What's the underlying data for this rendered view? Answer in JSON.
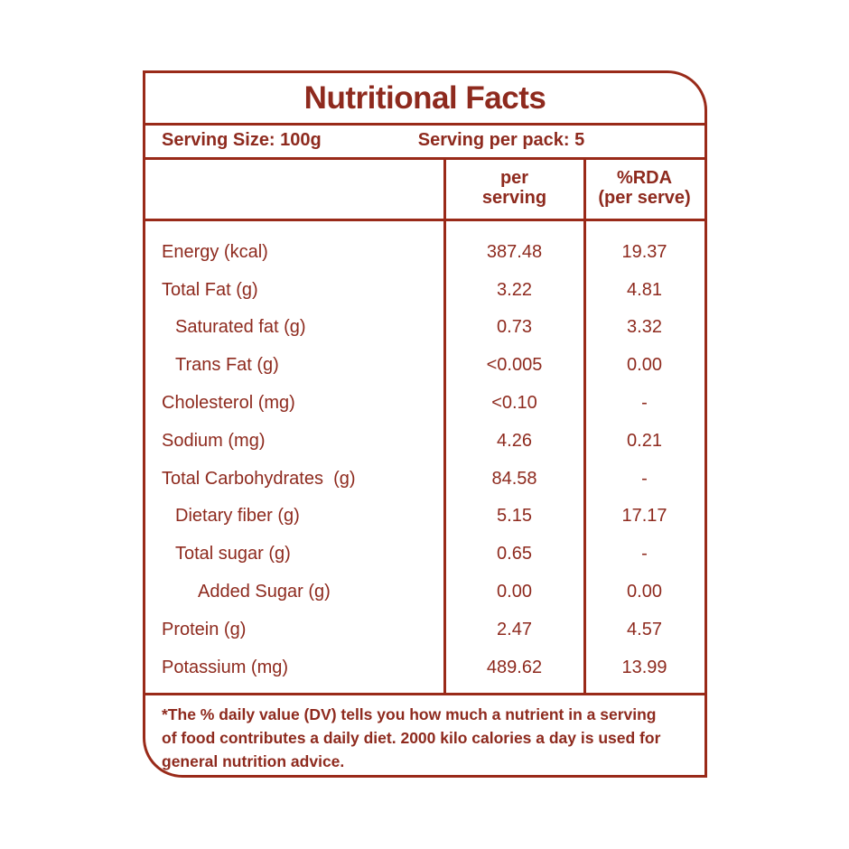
{
  "colors": {
    "accent": "#8e2a1e",
    "border": "#992a19",
    "background": "#ffffff"
  },
  "header": {
    "title": "Nutritional Facts"
  },
  "serving_info": {
    "serving_size": "Serving Size: 100g",
    "serving_per_pack": "Serving per pack: 5"
  },
  "table": {
    "column_headers": {
      "per_serving": {
        "line1": "per",
        "line2": "serving"
      },
      "rda": {
        "line1": "%RDA",
        "line2": "(per serve)"
      }
    },
    "rows": [
      {
        "label": "Energy (kcal)",
        "indent": 0,
        "per_serving": "387.48",
        "rda": "19.37"
      },
      {
        "label": "Total Fat (g)",
        "indent": 0,
        "per_serving": "3.22",
        "rda": "4.81"
      },
      {
        "label": "Saturated fat (g)",
        "indent": 1,
        "per_serving": "0.73",
        "rda": "3.32"
      },
      {
        "label": "Trans Fat (g)",
        "indent": 1,
        "per_serving": "<0.005",
        "rda": "0.00"
      },
      {
        "label": "Cholesterol (mg)",
        "indent": 0,
        "per_serving": "<0.10",
        "rda": "-"
      },
      {
        "label": "Sodium (mg)",
        "indent": 0,
        "per_serving": "4.26",
        "rda": "0.21"
      },
      {
        "label": "Total Carbohydrates  (g)",
        "indent": 0,
        "per_serving": "84.58",
        "rda": "-"
      },
      {
        "label": "Dietary fiber (g)",
        "indent": 1,
        "per_serving": "5.15",
        "rda": "17.17"
      },
      {
        "label": "Total sugar (g)",
        "indent": 1,
        "per_serving": "0.65",
        "rda": "-"
      },
      {
        "label": "Added Sugar (g)",
        "indent": 2,
        "per_serving": "0.00",
        "rda": "0.00"
      },
      {
        "label": "Protein (g)",
        "indent": 0,
        "per_serving": "2.47",
        "rda": "4.57"
      },
      {
        "label": "Potassium (mg)",
        "indent": 0,
        "per_serving": "489.62",
        "rda": "13.99"
      }
    ]
  },
  "footnote": {
    "lines": [
      "*The % daily value (DV) tells you how much a nutrient in a serving",
      "of food contributes a daily diet. 2000 kilo calories a day is used for",
      "general nutrition advice."
    ]
  }
}
